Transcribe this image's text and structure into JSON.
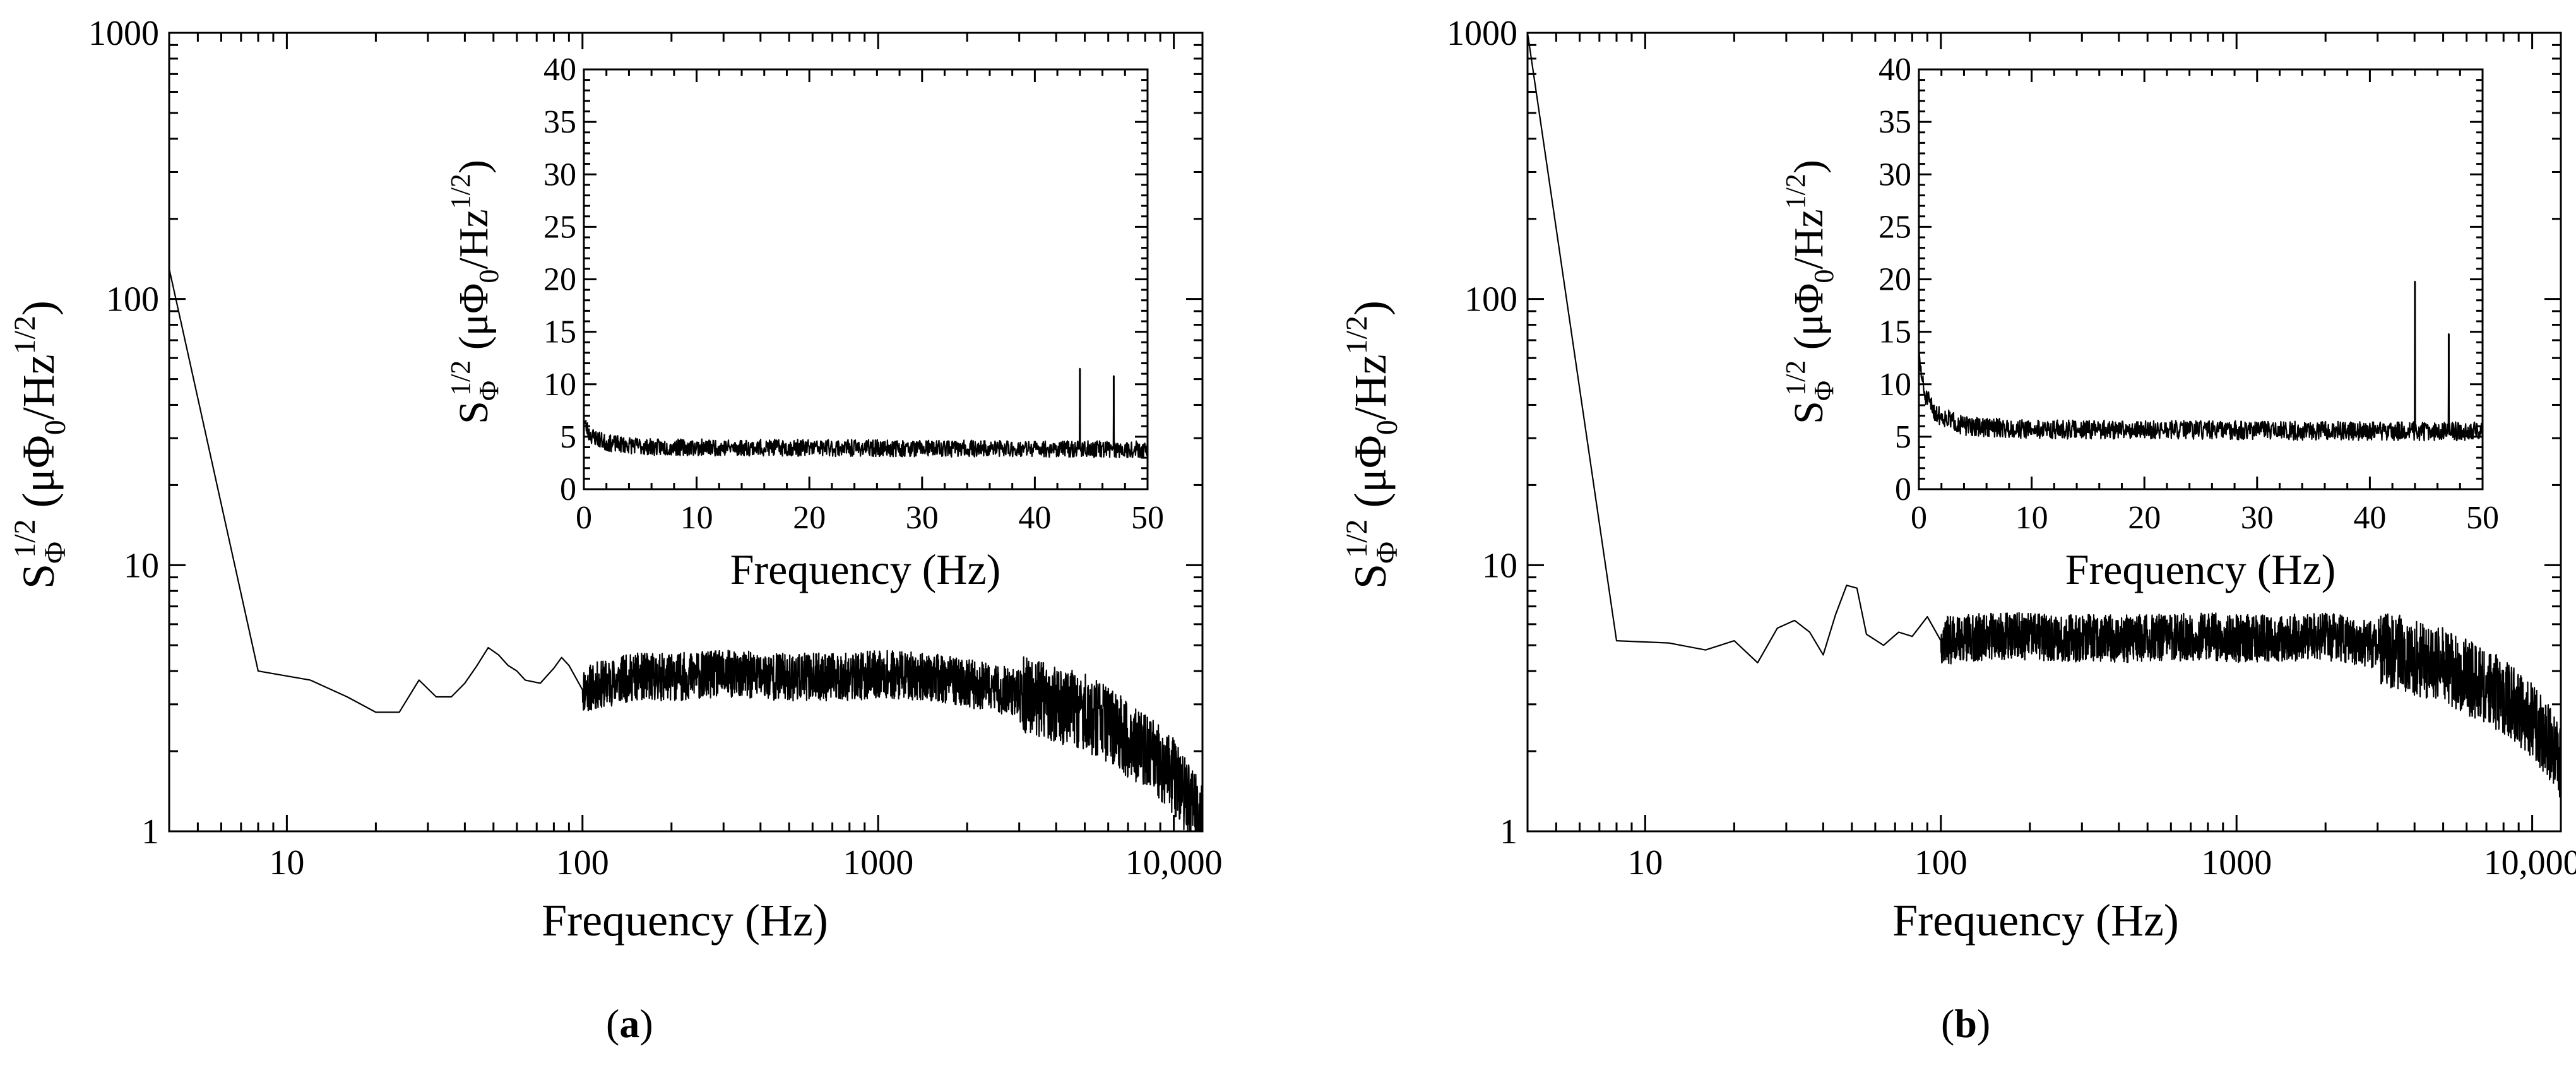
{
  "colors": {
    "line": "#000000",
    "background": "#ffffff"
  },
  "chart_data": [
    {
      "id": "a",
      "panel_label_prefix": "(",
      "panel_label_letter": "a",
      "panel_label_suffix": ")",
      "main": {
        "type": "line",
        "xscale": "log",
        "yscale": "log",
        "xlim": [
          4,
          12500
        ],
        "ylim": [
          1,
          1000
        ],
        "xticks": [
          {
            "v": 10,
            "label": "10"
          },
          {
            "v": 100,
            "label": "100"
          },
          {
            "v": 1000,
            "label": "1000"
          },
          {
            "v": 10000,
            "label": "10,000"
          }
        ],
        "yticks": [
          {
            "v": 1,
            "label": "1"
          },
          {
            "v": 10,
            "label": "10"
          },
          {
            "v": 100,
            "label": "100"
          },
          {
            "v": 1000,
            "label": "1000"
          }
        ],
        "xlabel": "Frequency (Hz)",
        "ylabel_S": "S",
        "ylabel_sub": "Φ",
        "ylabel_sup": "1/2",
        "ylabel_unit_pre": " (μΦ",
        "ylabel_unit_sub": "0",
        "ylabel_unit_mid": "/Hz",
        "ylabel_unit_sup": "1/2",
        "ylabel_unit_post": ")",
        "noise_amplitude": 0.09,
        "seed": 11,
        "points": [
          [
            4,
            130
          ],
          [
            8,
            4.0
          ],
          [
            12,
            3.7
          ],
          [
            16,
            3.2
          ],
          [
            20,
            2.8
          ],
          [
            24,
            2.8
          ],
          [
            28,
            3.7
          ],
          [
            32,
            3.2
          ],
          [
            36,
            3.2
          ],
          [
            40,
            3.6
          ],
          [
            44,
            4.2
          ],
          [
            48,
            4.9
          ],
          [
            52,
            4.6
          ],
          [
            56,
            4.2
          ],
          [
            60,
            4.0
          ],
          [
            64,
            3.7
          ],
          [
            72,
            3.6
          ],
          [
            80,
            4.1
          ],
          [
            85,
            4.5
          ],
          [
            90,
            4.2
          ],
          [
            100,
            3.4
          ],
          [
            120,
            3.6
          ],
          [
            150,
            3.8
          ],
          [
            200,
            3.8
          ],
          [
            300,
            3.9
          ],
          [
            500,
            3.8
          ],
          [
            800,
            3.8
          ],
          [
            1000,
            3.9
          ],
          [
            1500,
            3.8
          ],
          [
            2000,
            3.6
          ],
          [
            3000,
            3.3
          ],
          [
            4000,
            3.0
          ],
          [
            5000,
            2.8
          ],
          [
            6000,
            2.5
          ],
          [
            8000,
            2.0
          ],
          [
            10000,
            1.6
          ],
          [
            12000,
            1.2
          ],
          [
            12500,
            1.05
          ]
        ]
      },
      "inset": {
        "type": "line",
        "xlim": [
          0,
          50
        ],
        "ylim": [
          0,
          40
        ],
        "xticks": [
          {
            "v": 0,
            "label": "0"
          },
          {
            "v": 10,
            "label": "10"
          },
          {
            "v": 20,
            "label": "20"
          },
          {
            "v": 30,
            "label": "30"
          },
          {
            "v": 40,
            "label": "40"
          },
          {
            "v": 50,
            "label": "50"
          }
        ],
        "yticks": [
          {
            "v": 0,
            "label": "0"
          },
          {
            "v": 5,
            "label": "5"
          },
          {
            "v": 10,
            "label": "10"
          },
          {
            "v": 15,
            "label": "15"
          },
          {
            "v": 20,
            "label": "20"
          },
          {
            "v": 25,
            "label": "25"
          },
          {
            "v": 30,
            "label": "30"
          },
          {
            "v": 35,
            "label": "35"
          },
          {
            "v": 40,
            "label": "40"
          }
        ],
        "xlabel": "Frequency (Hz)",
        "baseline": [
          [
            0,
            6.5
          ],
          [
            0.5,
            5.2
          ],
          [
            2,
            4.4
          ],
          [
            6,
            4.0
          ],
          [
            50,
            3.8
          ]
        ],
        "noise_amplitude": 0.8,
        "seed": 23,
        "spikes": [
          {
            "x": 44,
            "y": 11.5
          },
          {
            "x": 47,
            "y": 10.8
          }
        ]
      }
    },
    {
      "id": "b",
      "panel_label_prefix": "(",
      "panel_label_letter": "b",
      "panel_label_suffix": ")",
      "main": {
        "type": "line",
        "xscale": "log",
        "yscale": "log",
        "xlim": [
          4,
          12500
        ],
        "ylim": [
          1,
          1000
        ],
        "xticks": [
          {
            "v": 10,
            "label": "10"
          },
          {
            "v": 100,
            "label": "100"
          },
          {
            "v": 1000,
            "label": "1000"
          },
          {
            "v": 10000,
            "label": "10,000"
          }
        ],
        "yticks": [
          {
            "v": 1,
            "label": "1"
          },
          {
            "v": 10,
            "label": "10"
          },
          {
            "v": 100,
            "label": "100"
          },
          {
            "v": 1000,
            "label": "1000"
          }
        ],
        "xlabel": "Frequency (Hz)",
        "ylabel_S": "S",
        "ylabel_sub": "Φ",
        "ylabel_sup": "1/2",
        "ylabel_unit_pre": " (μΦ",
        "ylabel_unit_sub": "0",
        "ylabel_unit_mid": "/Hz",
        "ylabel_unit_sup": "1/2",
        "ylabel_unit_post": ")",
        "noise_amplitude": 0.09,
        "seed": 37,
        "points": [
          [
            4,
            1000
          ],
          [
            8,
            5.2
          ],
          [
            12,
            5.1
          ],
          [
            16,
            4.8
          ],
          [
            20,
            5.2
          ],
          [
            24,
            4.3
          ],
          [
            28,
            5.8
          ],
          [
            32,
            6.2
          ],
          [
            36,
            5.6
          ],
          [
            40,
            4.6
          ],
          [
            44,
            6.5
          ],
          [
            48,
            8.4
          ],
          [
            52,
            8.2
          ],
          [
            56,
            5.5
          ],
          [
            64,
            5.0
          ],
          [
            72,
            5.6
          ],
          [
            80,
            5.4
          ],
          [
            90,
            6.4
          ],
          [
            100,
            5.2
          ],
          [
            150,
            5.4
          ],
          [
            200,
            5.4
          ],
          [
            300,
            5.3
          ],
          [
            500,
            5.3
          ],
          [
            800,
            5.4
          ],
          [
            1000,
            5.3
          ],
          [
            2000,
            5.4
          ],
          [
            3000,
            5.0
          ],
          [
            4000,
            4.5
          ],
          [
            5000,
            4.2
          ],
          [
            6000,
            3.8
          ],
          [
            8000,
            3.2
          ],
          [
            10000,
            2.6
          ],
          [
            12000,
            2.0
          ],
          [
            12500,
            1.8
          ]
        ]
      },
      "inset": {
        "type": "line",
        "xlim": [
          0,
          50
        ],
        "ylim": [
          0,
          40
        ],
        "xticks": [
          {
            "v": 0,
            "label": "0"
          },
          {
            "v": 10,
            "label": "10"
          },
          {
            "v": 20,
            "label": "20"
          },
          {
            "v": 30,
            "label": "30"
          },
          {
            "v": 40,
            "label": "40"
          },
          {
            "v": 50,
            "label": "50"
          }
        ],
        "yticks": [
          {
            "v": 0,
            "label": "0"
          },
          {
            "v": 5,
            "label": "5"
          },
          {
            "v": 10,
            "label": "10"
          },
          {
            "v": 15,
            "label": "15"
          },
          {
            "v": 20,
            "label": "20"
          },
          {
            "v": 25,
            "label": "25"
          },
          {
            "v": 30,
            "label": "30"
          },
          {
            "v": 35,
            "label": "35"
          },
          {
            "v": 40,
            "label": "40"
          }
        ],
        "xlabel": "Frequency (Hz)",
        "baseline": [
          [
            0,
            12.5
          ],
          [
            0.5,
            9.0
          ],
          [
            1.5,
            7.2
          ],
          [
            4,
            6.0
          ],
          [
            10,
            5.7
          ],
          [
            50,
            5.5
          ]
        ],
        "noise_amplitude": 0.9,
        "seed": 51,
        "spikes": [
          {
            "x": 44,
            "y": 19.8
          },
          {
            "x": 47,
            "y": 14.8
          }
        ]
      }
    }
  ]
}
